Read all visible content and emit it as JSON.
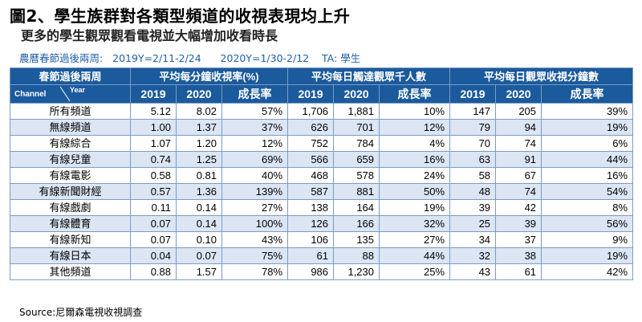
{
  "title": "圖2、學生族群對各類型頻道的收視表現均上升",
  "subtitle": "更多的學生觀眾觀看電視並大幅增加收看時長",
  "info": "農曆春節過後兩周:   2019Y=2/11-2/24      2020Y=1/30-2/12    TA: 學生",
  "source": "Source:尼爾森電視收視調查",
  "colors": {
    "header_bg": "#1b5a9c",
    "stripe": "#dbe5f3",
    "info_text": "#1f5fa8"
  },
  "chart_data": {
    "type": "table",
    "header_groups": [
      "春節過後兩周",
      "平均每分鐘收視率(%)",
      "平均每日觸達觀眾千人數",
      "平均每日觀眾收視分鐘數"
    ],
    "corner_row_label": "Channel",
    "corner_col_label": "Year",
    "sub_headers": [
      "2019",
      "2020",
      "成長率",
      "2019",
      "2020",
      "成長率",
      "2019",
      "2020",
      "成長率"
    ],
    "rows": [
      {
        "channel": "所有頻道",
        "values": [
          "5.12",
          "8.02",
          "57%",
          "1,706",
          "1,881",
          "10%",
          "147",
          "205",
          "39%"
        ]
      },
      {
        "channel": "無線頻道",
        "values": [
          "1.00",
          "1.37",
          "37%",
          "626",
          "701",
          "12%",
          "79",
          "94",
          "19%"
        ]
      },
      {
        "channel": "有線綜合",
        "values": [
          "1.07",
          "1.20",
          "12%",
          "752",
          "784",
          "4%",
          "70",
          "74",
          "6%"
        ]
      },
      {
        "channel": "有線兒童",
        "values": [
          "0.74",
          "1.25",
          "69%",
          "566",
          "659",
          "16%",
          "63",
          "91",
          "44%"
        ]
      },
      {
        "channel": "有線電影",
        "values": [
          "0.58",
          "0.81",
          "40%",
          "468",
          "578",
          "24%",
          "58",
          "67",
          "16%"
        ]
      },
      {
        "channel": "有線新聞財經",
        "values": [
          "0.57",
          "1.36",
          "139%",
          "587",
          "881",
          "50%",
          "48",
          "74",
          "54%"
        ]
      },
      {
        "channel": "有線戲劇",
        "values": [
          "0.11",
          "0.14",
          "27%",
          "138",
          "164",
          "19%",
          "39",
          "42",
          "8%"
        ]
      },
      {
        "channel": "有線體育",
        "values": [
          "0.07",
          "0.14",
          "100%",
          "126",
          "166",
          "32%",
          "25",
          "39",
          "56%"
        ]
      },
      {
        "channel": "有線新知",
        "values": [
          "0.07",
          "0.10",
          "43%",
          "106",
          "135",
          "27%",
          "34",
          "37",
          "9%"
        ]
      },
      {
        "channel": "有線日本",
        "values": [
          "0.04",
          "0.07",
          "75%",
          "61",
          "88",
          "44%",
          "32",
          "38",
          "19%"
        ]
      },
      {
        "channel": "其他頻道",
        "values": [
          "0.88",
          "1.57",
          "78%",
          "986",
          "1,230",
          "25%",
          "43",
          "61",
          "42%"
        ]
      }
    ]
  }
}
